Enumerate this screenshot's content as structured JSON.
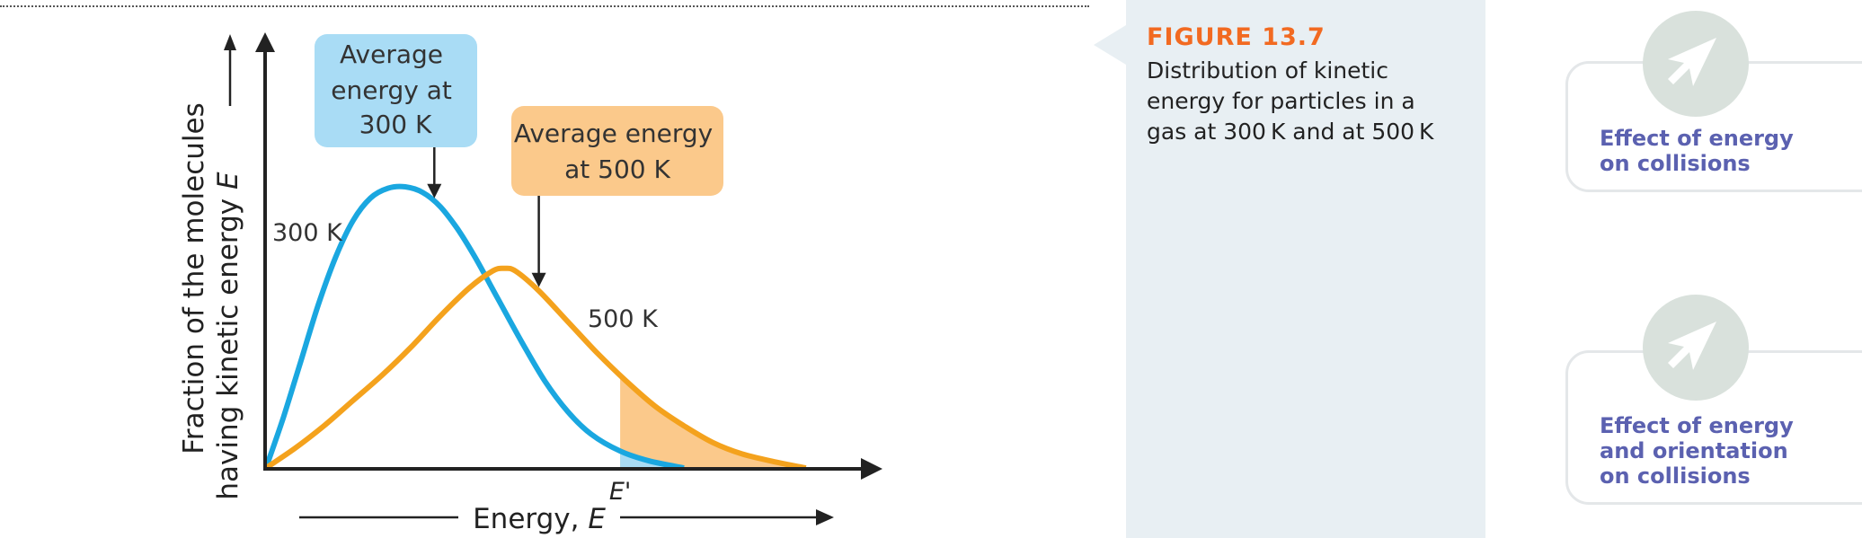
{
  "figure": {
    "number": "FIGURE 13.7",
    "caption": "Distribution of kinetic energy for particles in a gas at 300 K and at 500 K"
  },
  "chart_data": {
    "type": "line",
    "xlabel_prefix": "Energy, ",
    "xlabel_var": "E",
    "ylabel_line1": "Fraction of the molecules",
    "ylabel_line2_prefix": "having kinetic energy ",
    "ylabel_var": "E",
    "threshold_label": "E'",
    "threshold_x": 0.61,
    "xlim": [
      0,
      1
    ],
    "ylim": [
      0,
      1
    ],
    "series": [
      {
        "name": "300 K",
        "color": "#1aa7e0",
        "peak_x": 0.24,
        "peak_y": 1.0,
        "average_x": 0.29,
        "x": [
          0,
          0.03,
          0.06,
          0.09,
          0.12,
          0.15,
          0.18,
          0.21,
          0.24,
          0.27,
          0.3,
          0.33,
          0.36,
          0.4,
          0.44,
          0.48,
          0.52,
          0.56,
          0.61,
          0.66,
          0.72
        ],
        "y": [
          0,
          0.18,
          0.38,
          0.58,
          0.75,
          0.88,
          0.96,
          0.995,
          1.0,
          0.98,
          0.93,
          0.85,
          0.75,
          0.6,
          0.45,
          0.31,
          0.2,
          0.12,
          0.06,
          0.025,
          0.0
        ]
      },
      {
        "name": "500 K",
        "color": "#f4a21d",
        "peak_x": 0.41,
        "peak_y": 0.71,
        "average_x": 0.47,
        "x": [
          0,
          0.05,
          0.1,
          0.15,
          0.2,
          0.25,
          0.3,
          0.35,
          0.39,
          0.41,
          0.43,
          0.47,
          0.52,
          0.57,
          0.62,
          0.67,
          0.72,
          0.77,
          0.82,
          0.88,
          0.93
        ],
        "y": [
          0,
          0.07,
          0.15,
          0.24,
          0.33,
          0.43,
          0.54,
          0.64,
          0.7,
          0.71,
          0.7,
          0.63,
          0.52,
          0.41,
          0.31,
          0.22,
          0.15,
          0.09,
          0.05,
          0.02,
          0.0
        ]
      }
    ],
    "annotations": {
      "avg300": {
        "line1": "Average",
        "line2": "energy at",
        "line3": "300 K",
        "fill": "#a9dcf5"
      },
      "avg500": {
        "line1": "Average energy",
        "line2": "at 500 K",
        "fill": "#fbc98b"
      },
      "label300": "300 K",
      "label500": "500 K"
    }
  },
  "links": [
    {
      "line1": "Effect of energy",
      "line2": "on collisions",
      "icon": "arrow-cursor-icon"
    },
    {
      "line1": "Effect of energy",
      "line2": "and orientation",
      "line3": "on collisions",
      "icon": "arrow-cursor-icon"
    }
  ]
}
